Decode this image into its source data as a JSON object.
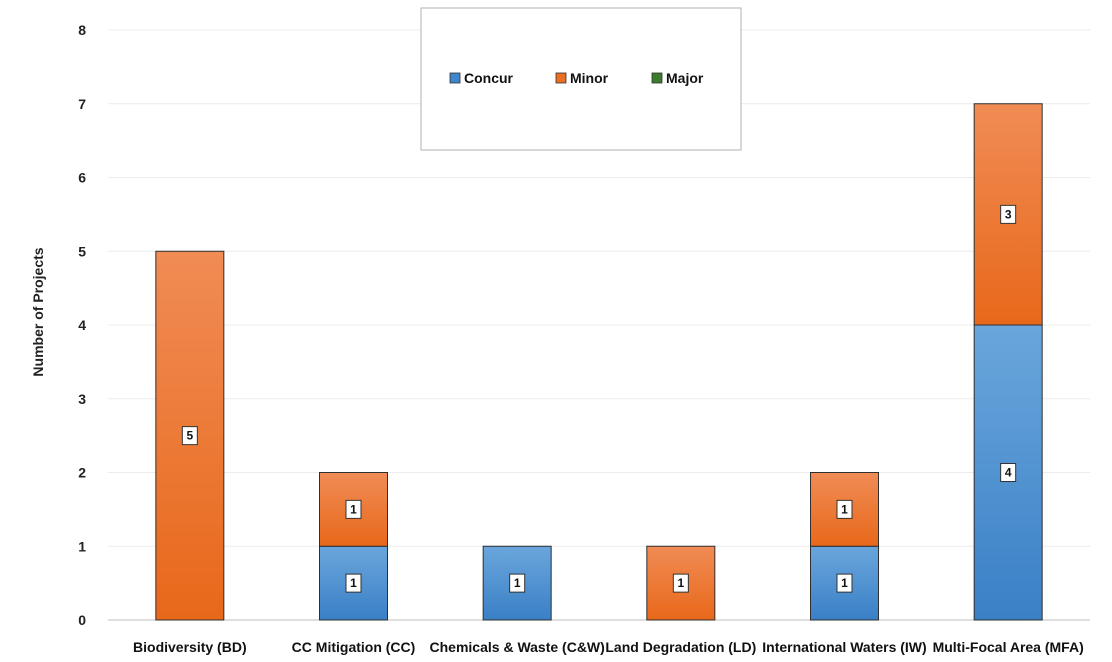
{
  "chart_data": {
    "type": "bar",
    "stacked": true,
    "categories": [
      "Biodiversity (BD)",
      "CC Mitigation (CC)",
      "Chemicals & Waste (C&W)",
      "Land Degradation (LD)",
      "International Waters (IW)",
      "Multi-Focal Area (MFA)"
    ],
    "series": [
      {
        "name": "Concur",
        "values": [
          0,
          1,
          1,
          0,
          1,
          4
        ],
        "color": "#3f86cc"
      },
      {
        "name": "Minor",
        "values": [
          5,
          1,
          0,
          1,
          1,
          3
        ],
        "color": "#eb6e22"
      },
      {
        "name": "Major",
        "values": [
          0,
          0,
          0,
          0,
          0,
          0
        ],
        "color": "#3a7d2c"
      }
    ],
    "ylabel": "Number of Projects",
    "ylim": [
      0,
      8
    ],
    "yticks": [
      0,
      1,
      2,
      3,
      4,
      5,
      6,
      7,
      8
    ],
    "grid": true,
    "legend_position": "top-center"
  }
}
